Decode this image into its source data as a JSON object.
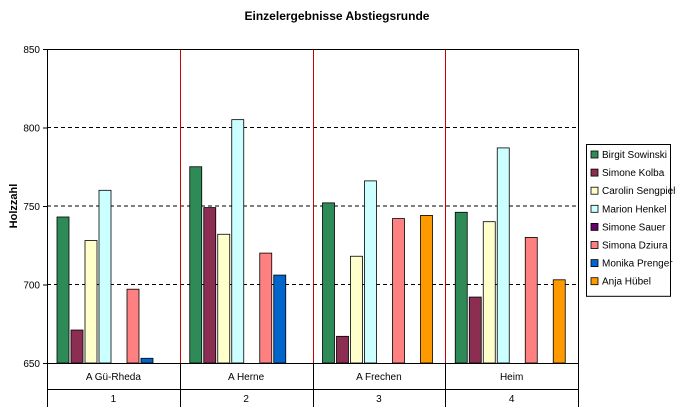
{
  "chart_data": {
    "type": "bar",
    "title": "Einzelergebnisse Abstiegsrunde",
    "ylabel": "Holzzahl",
    "xlabel": "",
    "ylim": [
      650,
      850
    ],
    "yticks": [
      650,
      700,
      750,
      800,
      850
    ],
    "grid": "dashed horizontal",
    "legend_position": "right",
    "categories": [
      "A Gü-Rheda",
      "A Herne",
      "A Frechen",
      "Heim"
    ],
    "subcategories": [
      "1",
      "2",
      "3",
      "4"
    ],
    "series": [
      {
        "name": "Birgit Sowinski",
        "color": "#2e8b57",
        "values": [
          743,
          775,
          752,
          746
        ]
      },
      {
        "name": "Simone Kolba",
        "color": "#8b2e52",
        "values": [
          671,
          749,
          667,
          692
        ]
      },
      {
        "name": "Carolin Sengpiehl",
        "color": "#ffffcc",
        "values": [
          728,
          732,
          718,
          740
        ]
      },
      {
        "name": "Marion Henkel",
        "color": "#ccffff",
        "values": [
          760,
          805,
          766,
          787
        ]
      },
      {
        "name": "Simone Sauer",
        "color": "#660066",
        "values": [
          null,
          null,
          null,
          null
        ]
      },
      {
        "name": "Simona Dziura",
        "color": "#ff8080",
        "values": [
          697,
          720,
          742,
          730
        ]
      },
      {
        "name": "Monika Prenger",
        "color": "#0066cc",
        "values": [
          653,
          706,
          null,
          null
        ]
      },
      {
        "name": "Anja Hübel",
        "color": "#ff9900",
        "values": [
          null,
          null,
          744,
          703
        ]
      }
    ]
  }
}
